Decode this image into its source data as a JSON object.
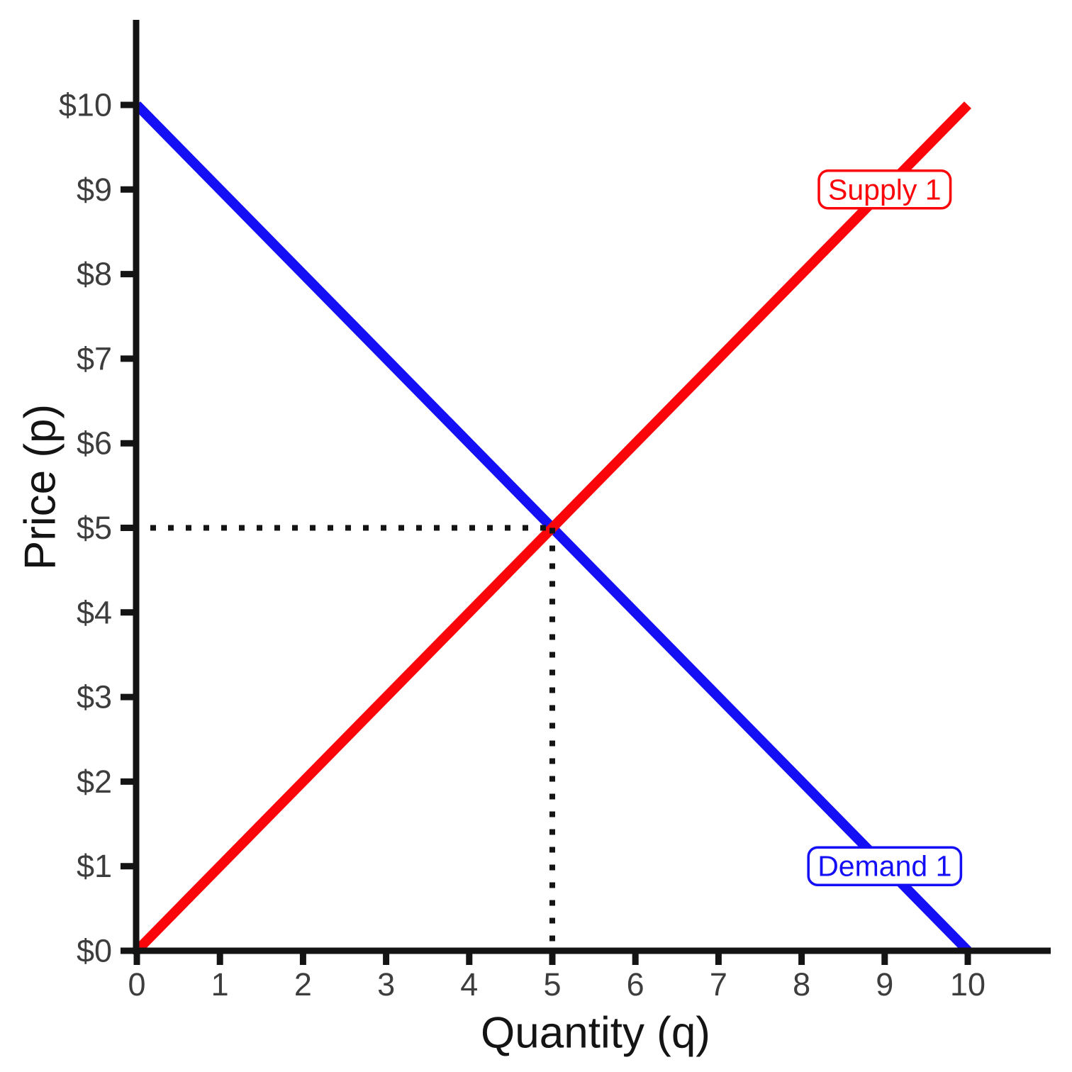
{
  "chart_data": {
    "type": "line",
    "title": "",
    "xlabel": "Quantity (q)",
    "ylabel": "Price (p)",
    "xlim": [
      0,
      10
    ],
    "ylim": [
      0,
      10
    ],
    "grid": false,
    "x_tick_values": [
      0,
      1,
      2,
      3,
      4,
      5,
      6,
      7,
      8,
      9,
      10
    ],
    "x_tick_labels": [
      "0",
      "1",
      "2",
      "3",
      "4",
      "5",
      "6",
      "7",
      "8",
      "9",
      "10"
    ],
    "y_tick_values": [
      0,
      1,
      2,
      3,
      4,
      5,
      6,
      7,
      8,
      9,
      10
    ],
    "y_tick_labels": [
      "$0",
      "$1",
      "$2",
      "$3",
      "$4",
      "$5",
      "$6",
      "$7",
      "$8",
      "$9",
      "$10"
    ],
    "series": [
      {
        "name": "Demand 1",
        "kind": "demand",
        "color": "#140ff5",
        "x": [
          0,
          10
        ],
        "y": [
          10,
          0
        ],
        "label": {
          "text": "Demand 1",
          "q": 9,
          "p": 1
        }
      },
      {
        "name": "Supply 1",
        "kind": "supply",
        "color": "#fa050a",
        "x": [
          0,
          10
        ],
        "y": [
          0,
          10
        ],
        "label": {
          "text": "Supply 1",
          "q": 9,
          "p": 9
        }
      }
    ],
    "equilibrium": {
      "quantity": 5,
      "price": 5
    },
    "colors": {
      "axis": "#141414",
      "tick_label": "#3d3d3d",
      "axis_title": "#141414",
      "dotted": "#141414",
      "label_box_bg": "#ffffff",
      "background": "#ffffff"
    }
  }
}
